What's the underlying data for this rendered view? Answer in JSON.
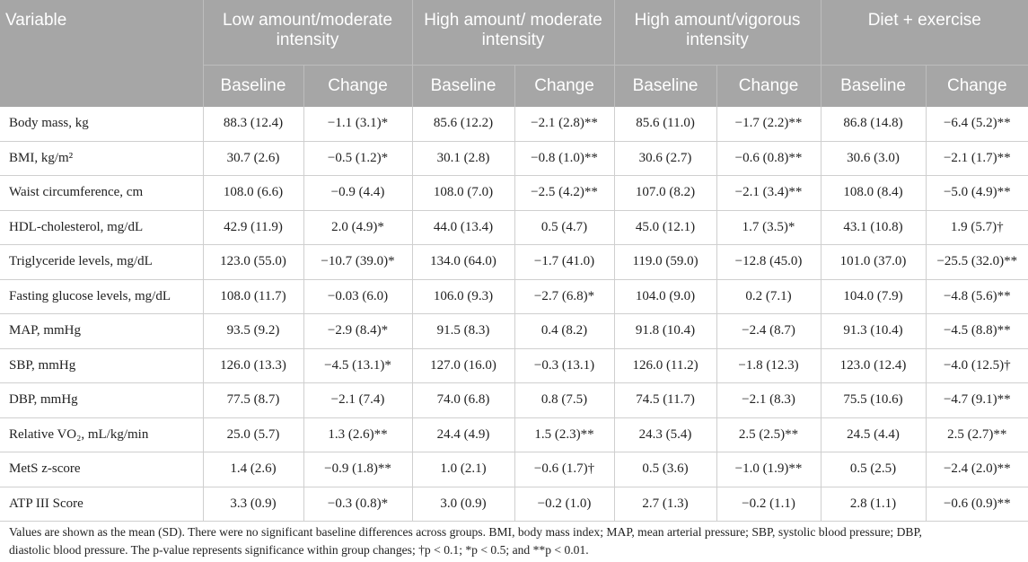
{
  "headers": {
    "variable": "Variable",
    "groups": [
      "Low amount/moderate intensity",
      "High amount/ moderate intensity",
      "High amount/vigorous intensity",
      "Diet + exercise"
    ],
    "baseline": "Baseline",
    "change": "Change"
  },
  "rows": [
    {
      "name": "Body mass, kg",
      "cells": [
        "88.3 (12.4)",
        "−1.1 (3.1)*",
        "85.6 (12.2)",
        "−2.1 (2.8)**",
        "85.6 (11.0)",
        "−1.7 (2.2)**",
        "86.8 (14.8)",
        "−6.4 (5.2)**"
      ]
    },
    {
      "name": "BMI, kg/m²",
      "cells": [
        "30.7 (2.6)",
        "−0.5 (1.2)*",
        "30.1 (2.8)",
        "−0.8 (1.0)**",
        "30.6 (2.7)",
        "−0.6 (0.8)**",
        "30.6 (3.0)",
        "−2.1 (1.7)**"
      ]
    },
    {
      "name": "Waist circumference, cm",
      "cells": [
        "108.0 (6.6)",
        "−0.9 (4.4)",
        "108.0 (7.0)",
        "−2.5 (4.2)**",
        "107.0 (8.2)",
        "−2.1 (3.4)**",
        "108.0 (8.4)",
        "−5.0 (4.9)**"
      ]
    },
    {
      "name": "HDL-cholesterol, mg/dL",
      "cells": [
        "42.9 (11.9)",
        "2.0 (4.9)*",
        "44.0 (13.4)",
        "0.5 (4.7)",
        "45.0 (12.1)",
        "1.7 (3.5)*",
        "43.1 (10.8)",
        "1.9 (5.7)†"
      ]
    },
    {
      "name": "Triglyceride levels, mg/dL",
      "cells": [
        "123.0 (55.0)",
        "−10.7 (39.0)*",
        "134.0 (64.0)",
        "−1.7 (41.0)",
        "119.0 (59.0)",
        "−12.8 (45.0)",
        "101.0 (37.0)",
        "−25.5 (32.0)**"
      ]
    },
    {
      "name": "Fasting glucose levels, mg/dL",
      "cells": [
        "108.0 (11.7)",
        "−0.03 (6.0)",
        "106.0 (9.3)",
        "−2.7 (6.8)*",
        "104.0 (9.0)",
        "0.2 (7.1)",
        "104.0 (7.9)",
        "−4.8 (5.6)**"
      ]
    },
    {
      "name": "MAP, mmHg",
      "cells": [
        "93.5 (9.2)",
        "−2.9 (8.4)*",
        "91.5 (8.3)",
        "0.4 (8.2)",
        "91.8 (10.4)",
        "−2.4 (8.7)",
        "91.3 (10.4)",
        "−4.5 (8.8)**"
      ]
    },
    {
      "name": "SBP, mmHg",
      "cells": [
        "126.0 (13.3)",
        "−4.5 (13.1)*",
        "127.0 (16.0)",
        "−0.3 (13.1)",
        "126.0 (11.2)",
        "−1.8 (12.3)",
        "123.0 (12.4)",
        "−4.0 (12.5)†"
      ]
    },
    {
      "name": "DBP, mmHg",
      "cells": [
        "77.5 (8.7)",
        "−2.1 (7.4)",
        "74.0 (6.8)",
        "0.8 (7.5)",
        "74.5 (11.7)",
        "−2.1 (8.3)",
        "75.5 (10.6)",
        "−4.7 (9.1)**"
      ]
    },
    {
      "name": "Relative VO₂, mL/kg/min",
      "cells": [
        "25.0 (5.7)",
        "1.3 (2.6)**",
        "24.4 (4.9)",
        "1.5 (2.3)**",
        "24.3 (5.4)",
        "2.5 (2.5)**",
        "24.5 (4.4)",
        "2.5 (2.7)**"
      ]
    },
    {
      "name": "MetS z-score",
      "cells": [
        "1.4 (2.6)",
        "−0.9 (1.8)**",
        "1.0 (2.1)",
        "−0.6 (1.7)†",
        "0.5 (3.6)",
        "−1.0 (1.9)**",
        "0.5 (2.5)",
        "−2.4 (2.0)**"
      ]
    },
    {
      "name": "ATP III Score",
      "cells": [
        "3.3 (0.9)",
        "−0.3 (0.8)*",
        "3.0 (0.9)",
        "−0.2 (1.0)",
        "2.7 (1.3)",
        "−0.2 (1.1)",
        "2.8 (1.1)",
        "−0.6 (0.9)**"
      ]
    }
  ],
  "footnote": {
    "line1": "Values are shown as the mean (SD). There were no significant baseline differences across groups. BMI, body mass index; MAP, mean arterial pressure; SBP, systolic blood pressure; DBP,",
    "line2": "diastolic blood pressure. The p-value represents significance within group changes; †p < 0.1; *p < 0.5; and **p < 0.01."
  },
  "colors": {
    "header_bg": "#a6a6a6",
    "header_text": "#ffffff",
    "rule": "#cfcfcf"
  }
}
